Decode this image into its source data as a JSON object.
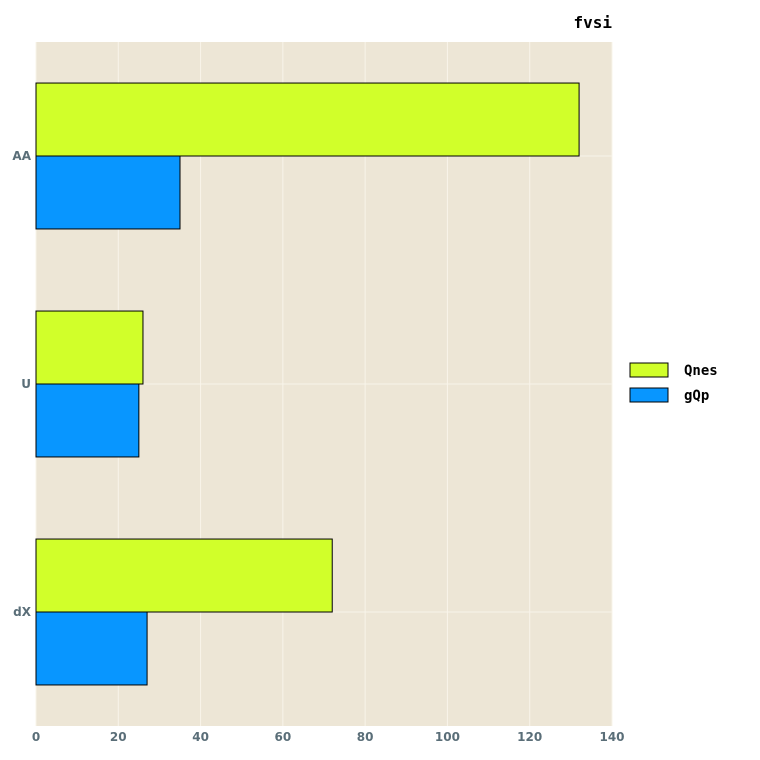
{
  "chart_data": {
    "type": "bar",
    "orientation": "horizontal",
    "title": "fvsi",
    "xlabel": "",
    "ylabel": "",
    "categories": [
      "AA",
      "U",
      "dX"
    ],
    "series": [
      {
        "name": "Qnes",
        "values": [
          132,
          26,
          72
        ],
        "color": "#d1ff2a"
      },
      {
        "name": "gQp",
        "values": [
          35,
          25,
          27
        ],
        "color": "#0896ff"
      }
    ],
    "xlim": [
      0,
      140
    ],
    "xticks": [
      0,
      20,
      40,
      60,
      80,
      100,
      120,
      140
    ],
    "grid": true,
    "legend_position": "right",
    "colors": {
      "plot_background": "#ede6d6",
      "grid": "#f8f4ea",
      "bar_edge": "#000000",
      "tick_text": "#5a6e78"
    }
  }
}
